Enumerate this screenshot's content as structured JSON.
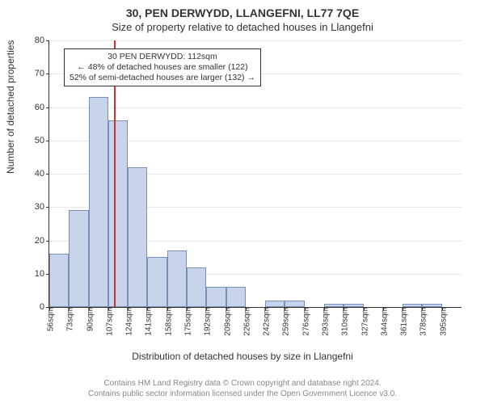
{
  "title_main": "30, PEN DERWYDD, LLANGEFNI, LL77 7QE",
  "title_sub": "Size of property relative to detached houses in Llangefni",
  "ylabel": "Number of detached properties",
  "xlabel": "Distribution of detached houses by size in Llangefni",
  "footer_line1": "Contains HM Land Registry data © Crown copyright and database right 2024.",
  "footer_line2": "Contains public sector information licensed under the Open Government Licence v3.0.",
  "chart": {
    "type": "histogram",
    "background_color": "#ffffff",
    "grid_color": "#e8e8e8",
    "axis_color": "#333333",
    "bar_fill": "#c8d4ec",
    "bar_border": "#7a8fb8",
    "marker_color": "#cc3333",
    "ylim": [
      0,
      80
    ],
    "ytick_step": 10,
    "yticks": [
      0,
      10,
      20,
      30,
      40,
      50,
      60,
      70,
      80
    ],
    "x_start": 56,
    "x_bin_width": 17,
    "x_categories": [
      "56sqm",
      "73sqm",
      "90sqm",
      "107sqm",
      "124sqm",
      "141sqm",
      "158sqm",
      "175sqm",
      "192sqm",
      "209sqm",
      "226sqm",
      "242sqm",
      "259sqm",
      "276sqm",
      "293sqm",
      "310sqm",
      "327sqm",
      "344sqm",
      "361sqm",
      "378sqm",
      "395sqm"
    ],
    "values": [
      16,
      29,
      63,
      56,
      42,
      15,
      17,
      12,
      6,
      6,
      0,
      2,
      2,
      0,
      1,
      1,
      0,
      0,
      1,
      1
    ],
    "marker_value_sqm": 112,
    "callout": {
      "line1": "30 PEN DERWYDD: 112sqm",
      "line2": "← 48% of detached houses are smaller (122)",
      "line3": "52% of semi-detached houses are larger (132) →"
    },
    "title_fontsize": 14,
    "subtitle_fontsize": 13,
    "label_fontsize": 12,
    "tick_fontsize": 11,
    "footer_fontsize": 10,
    "footer_color": "#888888"
  }
}
